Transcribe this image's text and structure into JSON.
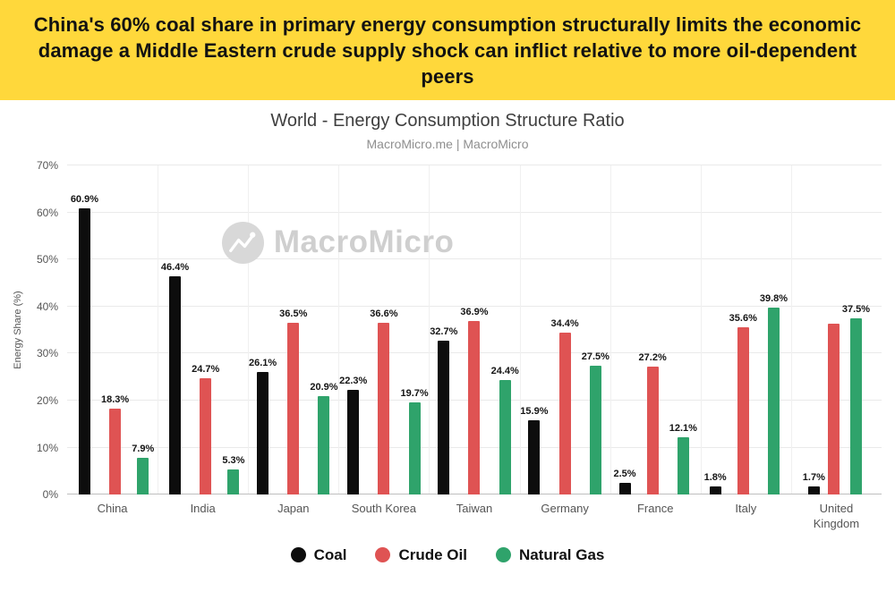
{
  "banner": {
    "text": "China's 60% coal share in primary energy consumption structurally limits the economic damage a Middle Eastern crude supply shock can inflict relative to more oil-dependent peers",
    "bg": "#FFD83B"
  },
  "chart": {
    "title": "World - Energy Consumption Structure Ratio",
    "subtitle": "MacroMicro.me | MacroMicro",
    "watermark": "MacroMicro",
    "ylabel": "Energy Share (%)"
  },
  "chart_data": {
    "type": "bar",
    "categories": [
      "China",
      "India",
      "Japan",
      "South Korea",
      "Taiwan",
      "Germany",
      "France",
      "Italy",
      "United Kingdom"
    ],
    "series": [
      {
        "name": "Coal",
        "color": "#0d0d0d",
        "values": [
          60.9,
          46.4,
          26.1,
          22.3,
          32.7,
          15.9,
          2.5,
          1.8,
          1.7
        ],
        "labels": [
          "60.9%",
          "46.4%",
          "26.1%",
          "22.3%",
          "32.7%",
          "15.9%",
          "2.5%",
          "1.8%",
          "1.7%"
        ]
      },
      {
        "name": "Crude Oil",
        "color": "#df5353",
        "values": [
          18.3,
          24.7,
          36.5,
          36.6,
          36.9,
          34.4,
          27.2,
          35.6,
          36.3
        ],
        "labels": [
          "18.3%",
          "24.7%",
          "36.5%",
          "36.6%",
          "36.9%",
          "34.4%",
          "27.2%",
          "35.6%",
          ""
        ]
      },
      {
        "name": "Natural Gas",
        "color": "#2fa36b",
        "values": [
          7.9,
          5.3,
          20.9,
          19.7,
          24.4,
          27.5,
          12.1,
          39.8,
          37.5
        ],
        "labels": [
          "7.9%",
          "5.3%",
          "20.9%",
          "19.7%",
          "24.4%",
          "27.5%",
          "12.1%",
          "39.8%",
          "37.5%"
        ]
      }
    ],
    "ylim": [
      0,
      70
    ],
    "yticks": [
      "0%",
      "10%",
      "20%",
      "30%",
      "40%",
      "50%",
      "60%",
      "70%"
    ],
    "ylabel": "Energy Share (%)",
    "grid": true,
    "legend_position": "bottom"
  },
  "legend": [
    {
      "label": "Coal",
      "color": "#0d0d0d"
    },
    {
      "label": "Crude Oil",
      "color": "#df5353"
    },
    {
      "label": "Natural Gas",
      "color": "#2fa36b"
    }
  ]
}
